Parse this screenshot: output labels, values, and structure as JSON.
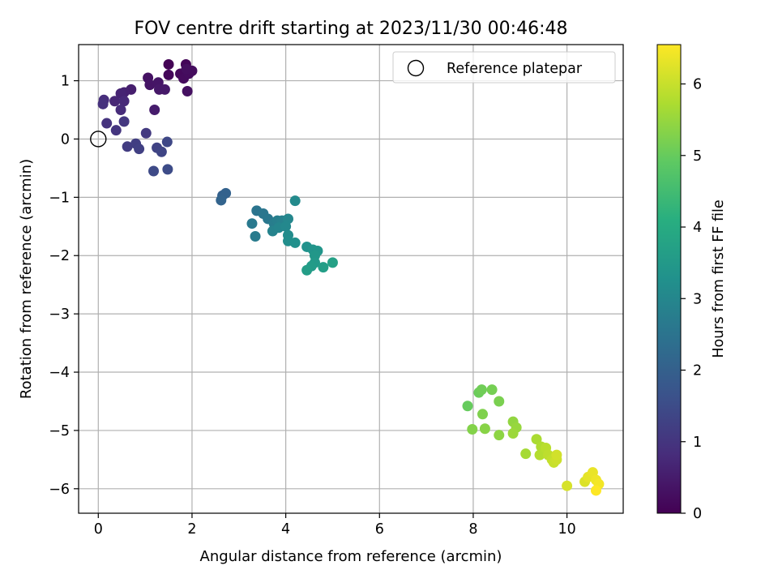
{
  "chart_data": {
    "type": "scatter",
    "title": "FOV centre drift starting at 2023/11/30 00:46:48",
    "xlabel": "Angular distance from reference (arcmin)",
    "ylabel": "Rotation from reference (arcmin)",
    "xlim": [
      -0.42,
      11.2
    ],
    "ylim": [
      -6.42,
      1.62
    ],
    "xticks": [
      0,
      2,
      4,
      6,
      8,
      10
    ],
    "yticks": [
      1,
      0,
      -1,
      -2,
      -3,
      -4,
      -5,
      -6
    ],
    "xtick_labels": [
      "0",
      "2",
      "4",
      "6",
      "8",
      "10"
    ],
    "ytick_labels": [
      "1",
      "0",
      "−1",
      "−2",
      "−3",
      "−4",
      "−5",
      "−6"
    ],
    "grid": true,
    "legend": {
      "placement": "top-right",
      "label": "Reference platepar",
      "marker": "open-circle"
    },
    "reference_point": {
      "x": 0,
      "y": 0
    },
    "colorbar": {
      "label": "Hours from first FF file",
      "colormap": "viridis",
      "min": 0,
      "max": 6.55,
      "ticks": [
        0,
        1,
        2,
        3,
        4,
        5,
        6
      ],
      "tick_labels": [
        "0",
        "1",
        "2",
        "3",
        "4",
        "5",
        "6"
      ]
    },
    "points": [
      {
        "x": 1.5,
        "y": 1.28,
        "c": 0.05
      },
      {
        "x": 1.87,
        "y": 1.28,
        "c": 0.08
      },
      {
        "x": 1.5,
        "y": 1.1,
        "c": 0.12
      },
      {
        "x": 1.75,
        "y": 1.12,
        "c": 0.15
      },
      {
        "x": 1.82,
        "y": 1.04,
        "c": 0.18
      },
      {
        "x": 1.93,
        "y": 1.12,
        "c": 0.2
      },
      {
        "x": 2.0,
        "y": 1.17,
        "c": 0.22
      },
      {
        "x": 1.88,
        "y": 1.2,
        "c": 0.24
      },
      {
        "x": 1.9,
        "y": 0.82,
        "c": 0.28
      },
      {
        "x": 1.06,
        "y": 1.05,
        "c": 0.32
      },
      {
        "x": 1.1,
        "y": 0.93,
        "c": 0.35
      },
      {
        "x": 1.28,
        "y": 0.97,
        "c": 0.38
      },
      {
        "x": 1.3,
        "y": 0.85,
        "c": 0.42
      },
      {
        "x": 1.42,
        "y": 0.85,
        "c": 0.45
      },
      {
        "x": 1.2,
        "y": 0.5,
        "c": 0.5
      },
      {
        "x": 0.7,
        "y": 0.85,
        "c": 0.55
      },
      {
        "x": 0.55,
        "y": 0.8,
        "c": 0.6
      },
      {
        "x": 0.48,
        "y": 0.78,
        "c": 0.65
      },
      {
        "x": 0.35,
        "y": 0.65,
        "c": 0.7
      },
      {
        "x": 0.55,
        "y": 0.65,
        "c": 0.75
      },
      {
        "x": 0.48,
        "y": 0.5,
        "c": 0.8
      },
      {
        "x": 0.12,
        "y": 0.67,
        "c": 0.85
      },
      {
        "x": 0.1,
        "y": 0.6,
        "c": 0.9
      },
      {
        "x": 0.18,
        "y": 0.27,
        "c": 0.95
      },
      {
        "x": 0.38,
        "y": 0.15,
        "c": 1.0
      },
      {
        "x": 0.55,
        "y": 0.3,
        "c": 1.05
      },
      {
        "x": 1.02,
        "y": 0.1,
        "c": 1.1
      },
      {
        "x": 0.62,
        "y": -0.13,
        "c": 1.15
      },
      {
        "x": 0.8,
        "y": -0.08,
        "c": 1.2
      },
      {
        "x": 0.87,
        "y": -0.17,
        "c": 1.25
      },
      {
        "x": 1.25,
        "y": -0.15,
        "c": 1.3
      },
      {
        "x": 1.35,
        "y": -0.22,
        "c": 1.35
      },
      {
        "x": 1.47,
        "y": -0.05,
        "c": 1.4
      },
      {
        "x": 1.18,
        "y": -0.55,
        "c": 1.45
      },
      {
        "x": 1.48,
        "y": -0.52,
        "c": 1.5
      },
      {
        "x": 2.65,
        "y": -0.97,
        "c": 2.0
      },
      {
        "x": 2.72,
        "y": -0.93,
        "c": 2.05
      },
      {
        "x": 2.62,
        "y": -1.05,
        "c": 2.1
      },
      {
        "x": 3.38,
        "y": -1.23,
        "c": 2.5
      },
      {
        "x": 3.52,
        "y": -1.28,
        "c": 2.55
      },
      {
        "x": 3.62,
        "y": -1.37,
        "c": 2.6
      },
      {
        "x": 3.28,
        "y": -1.45,
        "c": 2.65
      },
      {
        "x": 3.35,
        "y": -1.67,
        "c": 2.7
      },
      {
        "x": 3.75,
        "y": -1.45,
        "c": 2.75
      },
      {
        "x": 3.82,
        "y": -1.4,
        "c": 2.8
      },
      {
        "x": 3.92,
        "y": -1.4,
        "c": 2.85
      },
      {
        "x": 3.72,
        "y": -1.58,
        "c": 2.9
      },
      {
        "x": 3.85,
        "y": -1.52,
        "c": 2.95
      },
      {
        "x": 4.05,
        "y": -1.37,
        "c": 3.0
      },
      {
        "x": 4.0,
        "y": -1.5,
        "c": 3.05
      },
      {
        "x": 4.2,
        "y": -1.06,
        "c": 3.1
      },
      {
        "x": 4.05,
        "y": -1.65,
        "c": 3.15
      },
      {
        "x": 4.05,
        "y": -1.75,
        "c": 3.2
      },
      {
        "x": 4.2,
        "y": -1.78,
        "c": 3.25
      },
      {
        "x": 4.45,
        "y": -1.85,
        "c": 3.3
      },
      {
        "x": 4.58,
        "y": -1.9,
        "c": 3.35
      },
      {
        "x": 4.68,
        "y": -1.92,
        "c": 3.4
      },
      {
        "x": 4.62,
        "y": -2.0,
        "c": 3.45
      },
      {
        "x": 4.62,
        "y": -2.12,
        "c": 3.5
      },
      {
        "x": 4.55,
        "y": -2.18,
        "c": 3.55
      },
      {
        "x": 4.45,
        "y": -2.25,
        "c": 3.6
      },
      {
        "x": 4.8,
        "y": -2.2,
        "c": 3.65
      },
      {
        "x": 5.0,
        "y": -2.12,
        "c": 3.7
      },
      {
        "x": 7.88,
        "y": -4.58,
        "c": 5.0
      },
      {
        "x": 8.12,
        "y": -4.35,
        "c": 5.05
      },
      {
        "x": 8.18,
        "y": -4.3,
        "c": 5.1
      },
      {
        "x": 8.4,
        "y": -4.3,
        "c": 5.15
      },
      {
        "x": 8.55,
        "y": -4.5,
        "c": 5.2
      },
      {
        "x": 8.2,
        "y": -4.72,
        "c": 5.25
      },
      {
        "x": 7.98,
        "y": -4.98,
        "c": 5.3
      },
      {
        "x": 8.25,
        "y": -4.97,
        "c": 5.35
      },
      {
        "x": 8.55,
        "y": -5.08,
        "c": 5.4
      },
      {
        "x": 8.85,
        "y": -4.85,
        "c": 5.45
      },
      {
        "x": 8.92,
        "y": -4.95,
        "c": 5.5
      },
      {
        "x": 8.85,
        "y": -5.05,
        "c": 5.55
      },
      {
        "x": 9.12,
        "y": -5.4,
        "c": 5.65
      },
      {
        "x": 9.35,
        "y": -5.15,
        "c": 5.7
      },
      {
        "x": 9.45,
        "y": -5.28,
        "c": 5.75
      },
      {
        "x": 9.42,
        "y": -5.42,
        "c": 5.8
      },
      {
        "x": 9.55,
        "y": -5.3,
        "c": 5.85
      },
      {
        "x": 9.6,
        "y": -5.42,
        "c": 5.9
      },
      {
        "x": 9.68,
        "y": -5.5,
        "c": 5.95
      },
      {
        "x": 9.72,
        "y": -5.55,
        "c": 6.0
      },
      {
        "x": 9.78,
        "y": -5.5,
        "c": 6.05
      },
      {
        "x": 9.78,
        "y": -5.42,
        "c": 6.1
      },
      {
        "x": 10.0,
        "y": -5.95,
        "c": 6.15
      },
      {
        "x": 10.38,
        "y": -5.88,
        "c": 6.2
      },
      {
        "x": 10.45,
        "y": -5.8,
        "c": 6.3
      },
      {
        "x": 10.55,
        "y": -5.72,
        "c": 6.35
      },
      {
        "x": 10.62,
        "y": -5.85,
        "c": 6.4
      },
      {
        "x": 10.68,
        "y": -5.92,
        "c": 6.45
      },
      {
        "x": 10.62,
        "y": -6.03,
        "c": 6.55
      }
    ]
  }
}
